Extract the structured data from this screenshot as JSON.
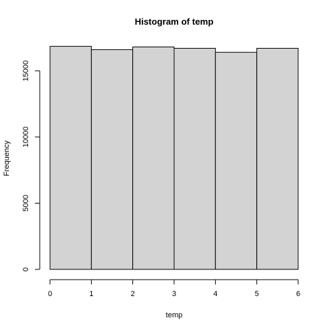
{
  "chart_data": {
    "type": "bar",
    "title": "Histogram of temp",
    "xlabel": "temp",
    "ylabel": "Frequency",
    "bins": [
      {
        "x0": 0,
        "x1": 1,
        "value": 16850
      },
      {
        "x0": 1,
        "x1": 2,
        "value": 16600
      },
      {
        "x0": 2,
        "x1": 3,
        "value": 16800
      },
      {
        "x0": 3,
        "x1": 4,
        "value": 16700
      },
      {
        "x0": 4,
        "x1": 5,
        "value": 16400
      },
      {
        "x0": 5,
        "x1": 6,
        "value": 16700
      }
    ],
    "xlim": [
      0,
      6
    ],
    "ylim": [
      0,
      17500
    ],
    "xticks": [
      0,
      1,
      2,
      3,
      4,
      5,
      6
    ],
    "yticks": [
      0,
      5000,
      10000,
      15000
    ],
    "xtick_labels": [
      "0",
      "1",
      "2",
      "3",
      "4",
      "5",
      "6"
    ],
    "ytick_labels": [
      "0",
      "5000",
      "10000",
      "15000"
    ],
    "grid": false,
    "bar_color": "#d3d3d3",
    "edge_color": "#000000"
  }
}
